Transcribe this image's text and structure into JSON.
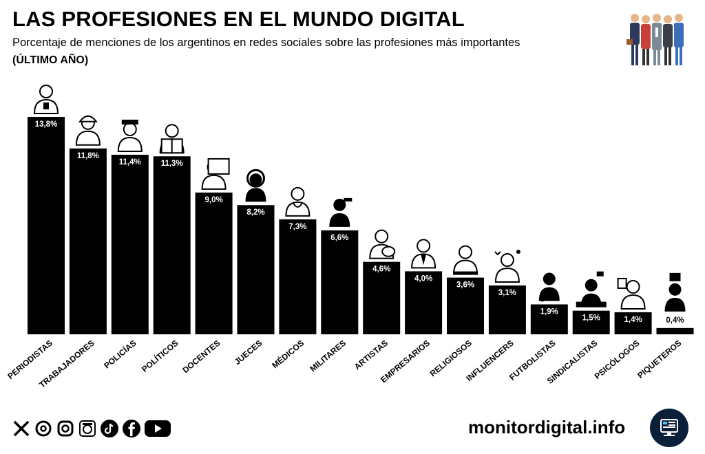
{
  "header": {
    "title": "LAS PROFESIONES EN EL MUNDO DIGITAL",
    "subtitle": "Porcentaje de menciones de los argentinos en redes sociales sobre las profesiones más importantes",
    "period": "(ÚLTIMO AÑO)"
  },
  "chart_data": {
    "type": "bar",
    "title": "LAS PROFESIONES EN EL MUNDO DIGITAL",
    "subtitle": "Porcentaje de menciones de los argentinos en redes sociales sobre las profesiones más importantes (ÚLTIMO AÑO)",
    "xlabel": "",
    "ylabel": "",
    "categories": [
      "PERIODISTAS",
      "TRABAJADORES",
      "POLICÍAS",
      "POLÍTICOS",
      "DOCENTES",
      "JUECES",
      "MÉDICOS",
      "MILITARES",
      "ARTISTAS",
      "EMPRESARIOS",
      "RELIGIOSOS",
      "INFLUENCERS",
      "FUTBOLISTAS",
      "SINDICALISTAS",
      "PSICÓLOGOS",
      "PIQUETEROS"
    ],
    "values": [
      13.8,
      11.8,
      11.4,
      11.3,
      9.0,
      8.2,
      7.3,
      6.6,
      4.6,
      4.0,
      3.6,
      3.1,
      1.9,
      1.5,
      1.4,
      0.4
    ],
    "labels": [
      "13,8%",
      "11,8%",
      "11,4%",
      "11,3%",
      "9,0%",
      "8,2%",
      "7,3%",
      "6,6%",
      "4,6%",
      "4,0%",
      "3,6%",
      "3,1%",
      "1,9%",
      "1,5%",
      "1,4%",
      "0,4%"
    ],
    "ylim": [
      0,
      13.8
    ],
    "grid": false,
    "legend": "none"
  },
  "icons": [
    "journalist-icon",
    "worker-icon",
    "police-icon",
    "politician-icon",
    "teacher-icon",
    "judge-icon",
    "doctor-icon",
    "soldier-icon",
    "artist-icon",
    "businessman-icon",
    "praying-hands-icon",
    "influencer-icon",
    "footballer-icon",
    "unionist-icon",
    "psychologist-icon",
    "protester-icon"
  ],
  "footer": {
    "social": [
      "x-icon",
      "threads-icon",
      "instagram-icon",
      "monitor-avatar-icon",
      "tiktok-icon",
      "facebook-icon",
      "youtube-icon"
    ],
    "site": "monitordigital.info"
  },
  "colors": {
    "bar": "#000000",
    "label": "#ffffff",
    "background": "#ffffff",
    "logo": "#0b1f3a"
  }
}
